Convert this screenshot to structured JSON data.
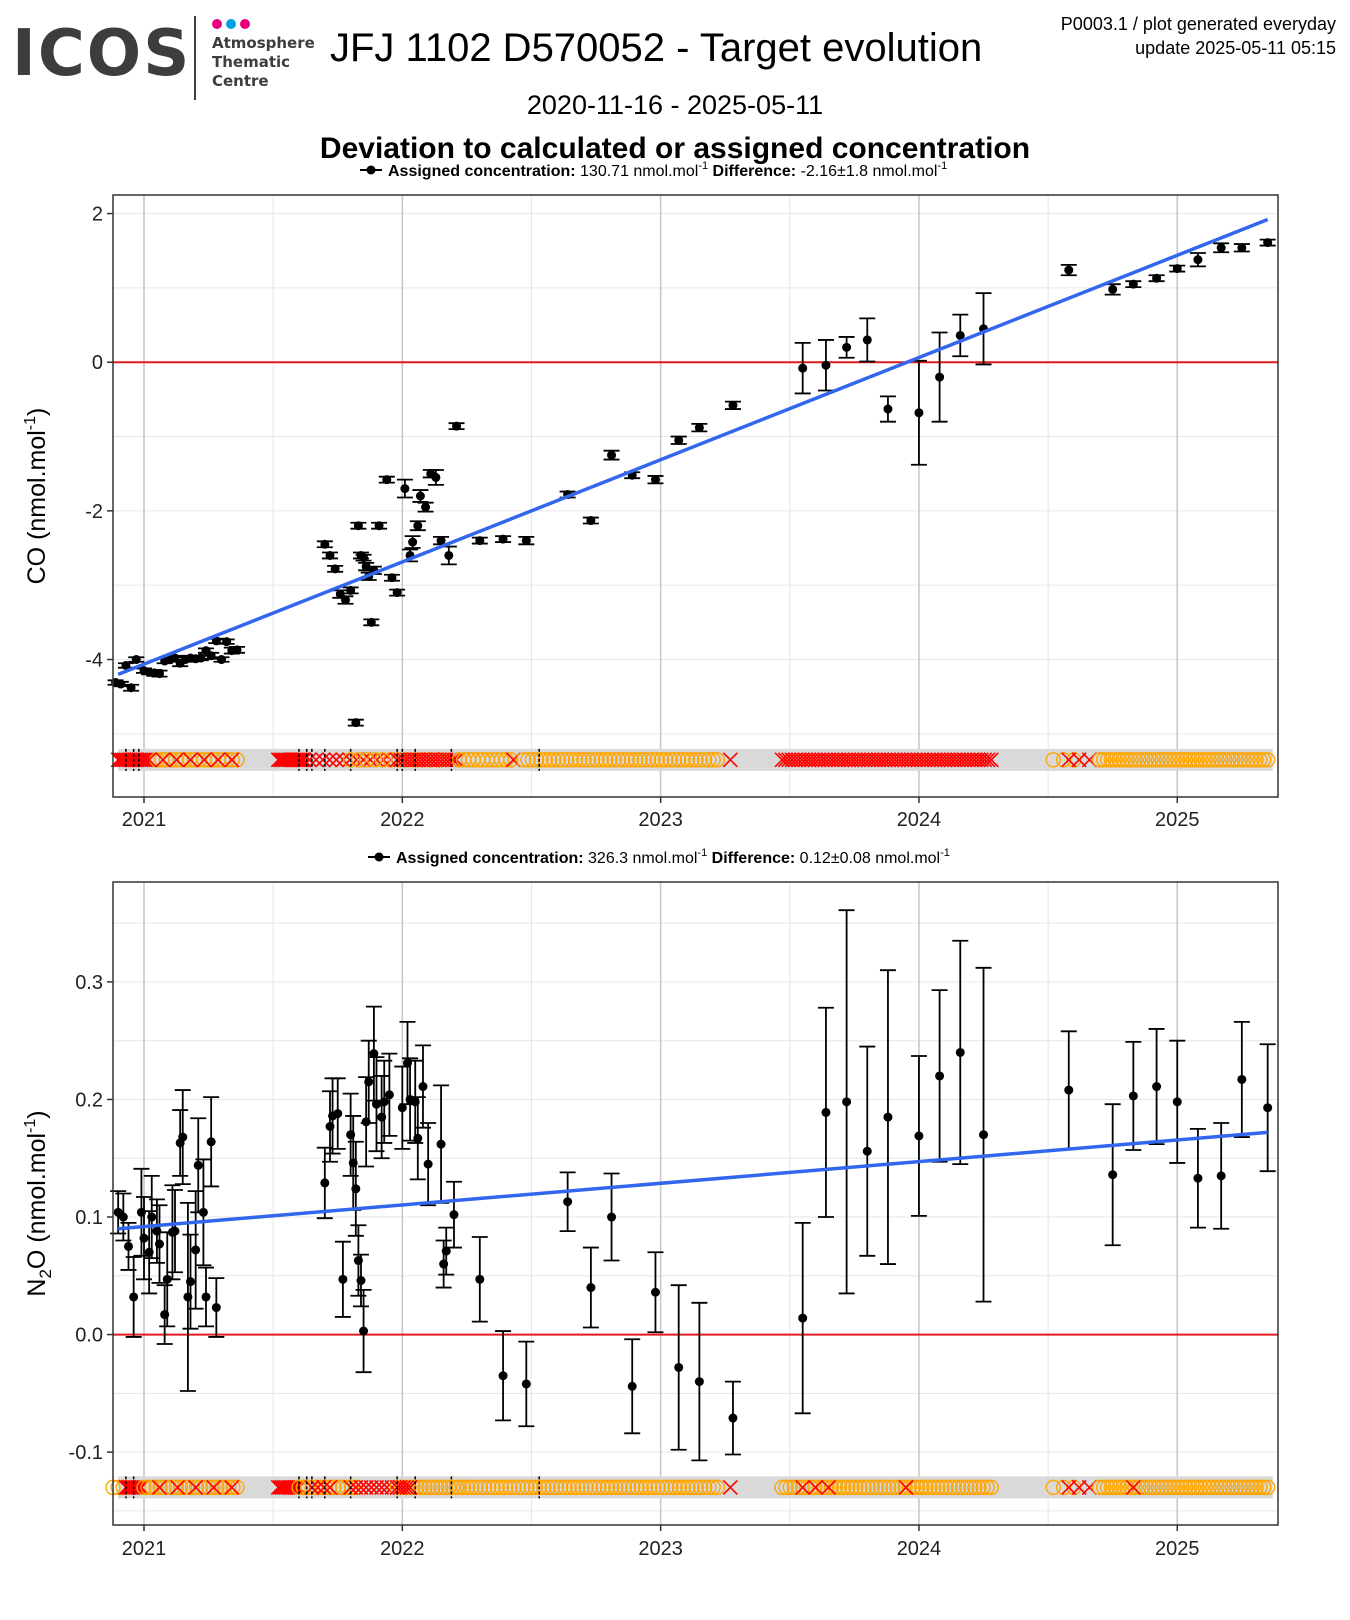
{
  "logo": {
    "text": "ICOS",
    "lines": [
      "Atmosphere",
      "Thematic",
      "Centre"
    ],
    "dot_colors": [
      "#e6007e",
      "#00a0e3",
      "#e6007e"
    ]
  },
  "header": {
    "title": "JFJ 1102 D570052 - Target evolution",
    "plot_id": "P0003.1 / plot generated everyday",
    "update": "update  2025-05-11 05:15",
    "date_range": "2020-11-16 - 2025-05-11",
    "subtitle": "Deviation to calculated or assigned concentration"
  },
  "colors": {
    "points": "#000000",
    "trend": "#3366ee",
    "zero": "#e31a1c",
    "flag_x": "#ff0000",
    "flag_o": "#ffa500",
    "band": "#d9d9d9",
    "grid": "#e6e6e6",
    "grid_major": "#c8c8c8"
  },
  "chart_data": [
    {
      "type": "scatter",
      "gas": "CO",
      "ylabel_main": "CO (nmol.mol",
      "ylabel_sup": "-1",
      "ylabel_end": ")",
      "legend": {
        "label": "Assigned concentration:",
        "value": "130.71 nmol.mol",
        "sup": "-1",
        "diff_label": "Difference:",
        "diff_value": "-2.16±1.8 nmol.mol",
        "diff_sup": "-1"
      },
      "xlim": [
        2020.88,
        2025.39
      ],
      "ylim": [
        -5.85,
        2.25
      ],
      "x_ticks": [
        2021,
        2022,
        2023,
        2024,
        2025
      ],
      "x_tick_labels": [
        "2021",
        "2022",
        "2023",
        "2024",
        "2025"
      ],
      "y_ticks": [
        -4,
        -2,
        0,
        2
      ],
      "y_tick_labels": [
        "-4",
        "-2",
        "0",
        "2"
      ],
      "trend": {
        "x": [
          2020.9,
          2025.35
        ],
        "y": [
          -4.2,
          1.92
        ]
      },
      "flag_y": -5.35,
      "points": [
        [
          2020.89,
          -4.31,
          0.03
        ],
        [
          2020.91,
          -4.33,
          0.03
        ],
        [
          2020.93,
          -4.08,
          0.03
        ],
        [
          2020.95,
          -4.38,
          0.04
        ],
        [
          2020.97,
          -4.0,
          0.03
        ],
        [
          2021.0,
          -4.15,
          0.03
        ],
        [
          2021.02,
          -4.17,
          0.03
        ],
        [
          2021.04,
          -4.18,
          0.04
        ],
        [
          2021.06,
          -4.19,
          0.04
        ],
        [
          2021.08,
          -4.02,
          0.03
        ],
        [
          2021.1,
          -4.0,
          0.03
        ],
        [
          2021.12,
          -3.98,
          0.03
        ],
        [
          2021.14,
          -4.05,
          0.04
        ],
        [
          2021.16,
          -4.0,
          0.03
        ],
        [
          2021.18,
          -3.98,
          0.03
        ],
        [
          2021.2,
          -3.99,
          0.03
        ],
        [
          2021.22,
          -3.98,
          0.03
        ],
        [
          2021.24,
          -3.88,
          0.03
        ],
        [
          2021.26,
          -3.95,
          0.04
        ],
        [
          2021.28,
          -3.75,
          0.03
        ],
        [
          2021.3,
          -4.0,
          0.03
        ],
        [
          2021.32,
          -3.76,
          0.03
        ],
        [
          2021.34,
          -3.88,
          0.04
        ],
        [
          2021.36,
          -3.87,
          0.04
        ],
        [
          2021.7,
          -2.45,
          0.04
        ],
        [
          2021.72,
          -2.6,
          0.04
        ],
        [
          2021.74,
          -2.78,
          0.04
        ],
        [
          2021.76,
          -3.12,
          0.05
        ],
        [
          2021.78,
          -3.2,
          0.05
        ],
        [
          2021.8,
          -3.07,
          0.04
        ],
        [
          2021.82,
          -4.85,
          0.04
        ],
        [
          2021.83,
          -2.2,
          0.04
        ],
        [
          2021.84,
          -2.6,
          0.04
        ],
        [
          2021.85,
          -2.63,
          0.04
        ],
        [
          2021.86,
          -2.75,
          0.05
        ],
        [
          2021.87,
          -2.88,
          0.05
        ],
        [
          2021.88,
          -3.5,
          0.04
        ],
        [
          2021.89,
          -2.8,
          0.05
        ],
        [
          2021.91,
          -2.2,
          0.04
        ],
        [
          2021.94,
          -1.58,
          0.04
        ],
        [
          2021.96,
          -2.9,
          0.04
        ],
        [
          2021.98,
          -3.1,
          0.04
        ],
        [
          2022.01,
          -1.7,
          0.12
        ],
        [
          2022.03,
          -2.6,
          0.08
        ],
        [
          2022.04,
          -2.42,
          0.08
        ],
        [
          2022.06,
          -2.2,
          0.06
        ],
        [
          2022.07,
          -1.8,
          0.08
        ],
        [
          2022.09,
          -1.95,
          0.06
        ],
        [
          2022.11,
          -1.5,
          0.05
        ],
        [
          2022.13,
          -1.55,
          0.1
        ],
        [
          2022.15,
          -2.4,
          0.05
        ],
        [
          2022.18,
          -2.6,
          0.12
        ],
        [
          2022.21,
          -0.86,
          0.04
        ],
        [
          2022.3,
          -2.4,
          0.04
        ],
        [
          2022.39,
          -2.38,
          0.04
        ],
        [
          2022.48,
          -2.4,
          0.05
        ],
        [
          2022.64,
          -1.78,
          0.04
        ],
        [
          2022.73,
          -2.13,
          0.04
        ],
        [
          2022.81,
          -1.25,
          0.06
        ],
        [
          2022.89,
          -1.52,
          0.04
        ],
        [
          2022.98,
          -1.58,
          0.05
        ],
        [
          2023.07,
          -1.05,
          0.05
        ],
        [
          2023.15,
          -0.88,
          0.05
        ],
        [
          2023.28,
          -0.58,
          0.05
        ],
        [
          2023.55,
          -0.08,
          0.34
        ],
        [
          2023.64,
          -0.04,
          0.34
        ],
        [
          2023.72,
          0.2,
          0.14
        ],
        [
          2023.8,
          0.3,
          0.29
        ],
        [
          2023.88,
          -0.63,
          0.17
        ],
        [
          2024.0,
          -0.68,
          0.7
        ],
        [
          2024.08,
          -0.2,
          0.6
        ],
        [
          2024.16,
          0.36,
          0.28
        ],
        [
          2024.25,
          0.45,
          0.48
        ],
        [
          2024.58,
          1.24,
          0.07
        ],
        [
          2024.75,
          0.98,
          0.07
        ],
        [
          2024.83,
          1.05,
          0.04
        ],
        [
          2024.92,
          1.13,
          0.04
        ],
        [
          2025.0,
          1.26,
          0.04
        ],
        [
          2025.08,
          1.38,
          0.09
        ],
        [
          2025.17,
          1.54,
          0.06
        ],
        [
          2025.25,
          1.54,
          0.05
        ],
        [
          2025.35,
          1.61,
          0.04
        ]
      ],
      "flags": [
        [
          "x",
          2020.9,
          2021.01,
          16
        ],
        [
          "o",
          2021.05,
          2021.36,
          18
        ],
        [
          "x",
          2021.02,
          2021.34,
          7
        ],
        [
          "x",
          2021.52,
          2021.62,
          14
        ],
        [
          "x",
          2021.64,
          2021.98,
          14
        ],
        [
          "o",
          2021.8,
          2022.14,
          12
        ],
        [
          "x",
          2021.98,
          2022.21,
          18
        ],
        [
          "o",
          2022.22,
          2022.42,
          12
        ],
        [
          "x",
          2022.43,
          2022.43,
          1
        ],
        [
          "o",
          2022.47,
          2023.22,
          46
        ],
        [
          "x",
          2023.27,
          2023.27,
          1
        ],
        [
          "x",
          2023.47,
          2024.28,
          64
        ],
        [
          "o",
          2024.52,
          2024.6,
          3
        ],
        [
          "x",
          2024.58,
          2024.66,
          3
        ],
        [
          "o",
          2024.7,
          2025.35,
          44
        ]
      ],
      "ticks_marks": [
        2020.93,
        2020.96,
        2020.98,
        2021.6,
        2021.63,
        2021.65,
        2021.7,
        2021.8,
        2021.98,
        2022.0,
        2022.05,
        2022.19,
        2022.53
      ]
    },
    {
      "type": "scatter",
      "gas": "N2O",
      "ylabel_main": "N",
      "ylabel_sub": "2",
      "ylabel_mid": "O (nmol.mol",
      "ylabel_sup": "-1",
      "ylabel_end": ")",
      "legend": {
        "label": "Assigned concentration:",
        "value": "326.3 nmol.mol",
        "sup": "-1",
        "diff_label": "Difference:",
        "diff_value": "0.12±0.08 nmol.mol",
        "diff_sup": "-1"
      },
      "xlim": [
        2020.88,
        2025.39
      ],
      "ylim": [
        -0.162,
        0.385
      ],
      "x_ticks": [
        2021,
        2022,
        2023,
        2024,
        2025
      ],
      "x_tick_labels": [
        "2021",
        "2022",
        "2023",
        "2024",
        "2025"
      ],
      "y_ticks": [
        -0.1,
        0.0,
        0.1,
        0.2,
        0.3
      ],
      "y_tick_labels": [
        "-0.1",
        "0.0",
        "0.1",
        "0.2",
        "0.3"
      ],
      "trend": {
        "x": [
          2020.9,
          2025.35
        ],
        "y": [
          0.09,
          0.172
        ]
      },
      "flag_y": -0.13,
      "points": [
        [
          2020.9,
          0.104,
          0.018
        ],
        [
          2020.92,
          0.1,
          0.02
        ],
        [
          2020.94,
          0.075,
          0.02
        ],
        [
          2020.96,
          0.032,
          0.034
        ],
        [
          2020.99,
          0.104,
          0.037
        ],
        [
          2021.0,
          0.082,
          0.035
        ],
        [
          2021.02,
          0.07,
          0.035
        ],
        [
          2021.03,
          0.1,
          0.035
        ],
        [
          2021.05,
          0.088,
          0.027
        ],
        [
          2021.06,
          0.077,
          0.033
        ],
        [
          2021.08,
          0.017,
          0.025
        ],
        [
          2021.09,
          0.047,
          0.04
        ],
        [
          2021.11,
          0.087,
          0.04
        ],
        [
          2021.12,
          0.088,
          0.035
        ],
        [
          2021.14,
          0.163,
          0.028
        ],
        [
          2021.15,
          0.168,
          0.04
        ],
        [
          2021.17,
          0.032,
          0.08
        ],
        [
          2021.18,
          0.045,
          0.04
        ],
        [
          2021.2,
          0.072,
          0.05
        ],
        [
          2021.21,
          0.144,
          0.04
        ],
        [
          2021.23,
          0.104,
          0.045
        ],
        [
          2021.24,
          0.032,
          0.025
        ],
        [
          2021.26,
          0.164,
          0.038
        ],
        [
          2021.28,
          0.023,
          0.025
        ],
        [
          2021.7,
          0.129,
          0.03
        ],
        [
          2021.72,
          0.177,
          0.03
        ],
        [
          2021.73,
          0.186,
          0.032
        ],
        [
          2021.75,
          0.188,
          0.03
        ],
        [
          2021.77,
          0.047,
          0.032
        ],
        [
          2021.8,
          0.17,
          0.035
        ],
        [
          2021.81,
          0.146,
          0.04
        ],
        [
          2021.82,
          0.124,
          0.04
        ],
        [
          2021.83,
          0.063,
          0.03
        ],
        [
          2021.84,
          0.046,
          0.022
        ],
        [
          2021.85,
          0.003,
          0.035
        ],
        [
          2021.86,
          0.181,
          0.038
        ],
        [
          2021.87,
          0.215,
          0.035
        ],
        [
          2021.89,
          0.239,
          0.04
        ],
        [
          2021.9,
          0.196,
          0.04
        ],
        [
          2021.92,
          0.185,
          0.035
        ],
        [
          2021.93,
          0.198,
          0.035
        ],
        [
          2021.95,
          0.204,
          0.035
        ],
        [
          2022.0,
          0.193,
          0.035
        ],
        [
          2022.02,
          0.231,
          0.035
        ],
        [
          2022.03,
          0.2,
          0.035
        ],
        [
          2022.05,
          0.198,
          0.035
        ],
        [
          2022.06,
          0.167,
          0.035
        ],
        [
          2022.08,
          0.211,
          0.035
        ],
        [
          2022.1,
          0.145,
          0.035
        ],
        [
          2022.15,
          0.162,
          0.05
        ],
        [
          2022.16,
          0.06,
          0.02
        ],
        [
          2022.17,
          0.071,
          0.02
        ],
        [
          2022.2,
          0.102,
          0.028
        ],
        [
          2022.3,
          0.047,
          0.036
        ],
        [
          2022.39,
          -0.035,
          0.038
        ],
        [
          2022.48,
          -0.042,
          0.036
        ],
        [
          2022.64,
          0.113,
          0.025
        ],
        [
          2022.73,
          0.04,
          0.034
        ],
        [
          2022.81,
          0.1,
          0.037
        ],
        [
          2022.89,
          -0.044,
          0.04
        ],
        [
          2022.98,
          0.036,
          0.034
        ],
        [
          2023.07,
          -0.028,
          0.07
        ],
        [
          2023.15,
          -0.04,
          0.067
        ],
        [
          2023.28,
          -0.071,
          0.031
        ],
        [
          2023.55,
          0.014,
          0.081
        ],
        [
          2023.64,
          0.189,
          0.089
        ],
        [
          2023.72,
          0.198,
          0.163
        ],
        [
          2023.8,
          0.156,
          0.089
        ],
        [
          2023.88,
          0.185,
          0.125
        ],
        [
          2024.0,
          0.169,
          0.068
        ],
        [
          2024.08,
          0.22,
          0.073
        ],
        [
          2024.16,
          0.24,
          0.095
        ],
        [
          2024.25,
          0.17,
          0.142
        ],
        [
          2024.58,
          0.208,
          0.05
        ],
        [
          2024.75,
          0.136,
          0.06
        ],
        [
          2024.83,
          0.203,
          0.046
        ],
        [
          2024.92,
          0.211,
          0.049
        ],
        [
          2025.0,
          0.198,
          0.052
        ],
        [
          2025.08,
          0.133,
          0.042
        ],
        [
          2025.17,
          0.135,
          0.045
        ],
        [
          2025.25,
          0.217,
          0.049
        ],
        [
          2025.35,
          0.193,
          0.054
        ]
      ],
      "flags": [
        [
          "o",
          2020.88,
          2020.92,
          3
        ],
        [
          "x",
          2020.93,
          2020.99,
          10
        ],
        [
          "o",
          2021.0,
          2021.36,
          24
        ],
        [
          "x",
          2021.06,
          2021.34,
          5
        ],
        [
          "x",
          2021.52,
          2021.6,
          12
        ],
        [
          "o",
          2021.6,
          2021.82,
          14
        ],
        [
          "x",
          2021.65,
          2021.72,
          4
        ],
        [
          "x",
          2021.8,
          2021.98,
          10
        ],
        [
          "o",
          2021.98,
          2022.21,
          16
        ],
        [
          "x",
          2021.98,
          2022.03,
          5
        ],
        [
          "o",
          2022.22,
          2023.22,
          62
        ],
        [
          "x",
          2023.27,
          2023.27,
          1
        ],
        [
          "o",
          2023.47,
          2024.28,
          52
        ],
        [
          "x",
          2023.55,
          2023.65,
          3
        ],
        [
          "x",
          2023.95,
          2023.95,
          1
        ],
        [
          "o",
          2024.52,
          2024.6,
          3
        ],
        [
          "x",
          2024.58,
          2024.66,
          3
        ],
        [
          "o",
          2024.7,
          2025.35,
          44
        ],
        [
          "x",
          2024.83,
          2024.83,
          1
        ]
      ],
      "ticks_marks": [
        2020.93,
        2020.96,
        2021.6,
        2021.63,
        2021.65,
        2021.7,
        2021.8,
        2021.98,
        2022.05,
        2022.19,
        2022.53
      ]
    }
  ]
}
